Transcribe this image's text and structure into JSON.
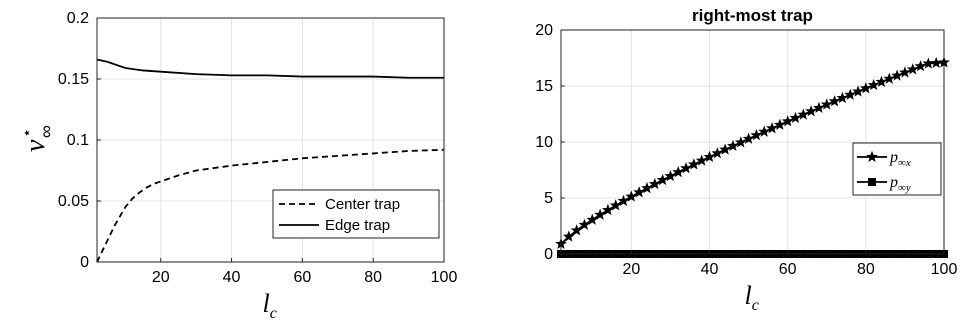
{
  "chart_data": [
    {
      "type": "line",
      "title": "",
      "xlabel": "l",
      "xlabel_sub": "c",
      "ylabel": "v",
      "ylabel_sup": "⋆",
      "ylabel_sub": "∞",
      "xlim": [
        0,
        100
      ],
      "ylim": [
        0,
        0.2
      ],
      "xticks": [
        20,
        40,
        60,
        80,
        100
      ],
      "xtick_labels": [
        "20",
        "40",
        "60",
        "80",
        "100"
      ],
      "yticks": [
        0,
        0.05,
        0.1,
        0.15,
        0.2
      ],
      "ytick_labels": [
        "0",
        "0.05",
        "0.1",
        "0.15",
        "0.2"
      ],
      "grid": true,
      "legend_position": "bottom-right",
      "series": [
        {
          "name": "Center trap",
          "style": "dashed",
          "x": [
            2,
            3,
            4,
            5,
            6,
            7,
            8,
            9,
            10,
            12,
            14,
            16,
            18,
            20,
            25,
            30,
            35,
            40,
            50,
            60,
            70,
            80,
            90,
            100
          ],
          "y": [
            0.0,
            0.006,
            0.012,
            0.018,
            0.024,
            0.03,
            0.035,
            0.04,
            0.045,
            0.052,
            0.057,
            0.061,
            0.064,
            0.066,
            0.071,
            0.075,
            0.077,
            0.079,
            0.082,
            0.085,
            0.087,
            0.089,
            0.091,
            0.092
          ]
        },
        {
          "name": "Edge trap",
          "style": "solid",
          "x": [
            2,
            5,
            8,
            10,
            15,
            20,
            30,
            40,
            50,
            60,
            70,
            80,
            90,
            100
          ],
          "y": [
            0.166,
            0.164,
            0.161,
            0.159,
            0.157,
            0.156,
            0.154,
            0.153,
            0.153,
            0.152,
            0.152,
            0.152,
            0.151,
            0.151
          ]
        }
      ]
    },
    {
      "type": "line",
      "title": "right-most trap",
      "xlabel": "l",
      "xlabel_sub": "c",
      "ylabel": "",
      "xlim": [
        0,
        100
      ],
      "ylim": [
        0,
        20
      ],
      "xticks": [
        20,
        40,
        60,
        80,
        100
      ],
      "xtick_labels": [
        "20",
        "40",
        "60",
        "80",
        "100"
      ],
      "yticks": [
        0,
        5,
        10,
        15,
        20
      ],
      "ytick_labels": [
        "0",
        "5",
        "10",
        "15",
        "20"
      ],
      "grid": true,
      "legend_position": "right",
      "series": [
        {
          "name": "p",
          "name_sub": "∞x",
          "marker": "star",
          "x": [
            2,
            4,
            6,
            8,
            10,
            12,
            14,
            16,
            18,
            20,
            22,
            24,
            26,
            28,
            30,
            32,
            34,
            36,
            38,
            40,
            42,
            44,
            46,
            48,
            50,
            52,
            54,
            56,
            58,
            60,
            62,
            64,
            66,
            68,
            70,
            72,
            74,
            76,
            78,
            80,
            82,
            84,
            86,
            88,
            90,
            92,
            94,
            96,
            98,
            100
          ],
          "y": [
            0.9,
            1.55,
            2.1,
            2.6,
            3.05,
            3.5,
            3.92,
            4.33,
            4.73,
            5.12,
            5.5,
            5.87,
            6.24,
            6.6,
            6.95,
            7.3,
            7.65,
            7.99,
            8.33,
            8.66,
            8.99,
            9.32,
            9.64,
            9.96,
            10.28,
            10.6,
            10.91,
            11.22,
            11.53,
            11.84,
            12.14,
            12.44,
            12.74,
            13.04,
            13.34,
            13.63,
            13.92,
            14.21,
            14.5,
            14.79,
            15.08,
            15.36,
            15.64,
            15.92,
            16.2,
            16.48,
            16.76,
            17.0,
            17.05,
            17.1
          ]
        },
        {
          "name": "p",
          "name_sub": "∞y",
          "marker": "square",
          "x": [
            2,
            4,
            6,
            8,
            10,
            12,
            14,
            16,
            18,
            20,
            22,
            24,
            26,
            28,
            30,
            32,
            34,
            36,
            38,
            40,
            42,
            44,
            46,
            48,
            50,
            52,
            54,
            56,
            58,
            60,
            62,
            64,
            66,
            68,
            70,
            72,
            74,
            76,
            78,
            80,
            82,
            84,
            86,
            88,
            90,
            92,
            94,
            96,
            98,
            100
          ],
          "y": [
            0,
            0,
            0,
            0,
            0,
            0,
            0,
            0,
            0,
            0,
            0,
            0,
            0,
            0,
            0,
            0,
            0,
            0,
            0,
            0,
            0,
            0,
            0,
            0,
            0,
            0,
            0,
            0,
            0,
            0,
            0,
            0,
            0,
            0,
            0,
            0,
            0,
            0,
            0,
            0,
            0,
            0,
            0,
            0,
            0,
            0,
            0,
            0,
            0,
            0
          ]
        }
      ]
    }
  ]
}
